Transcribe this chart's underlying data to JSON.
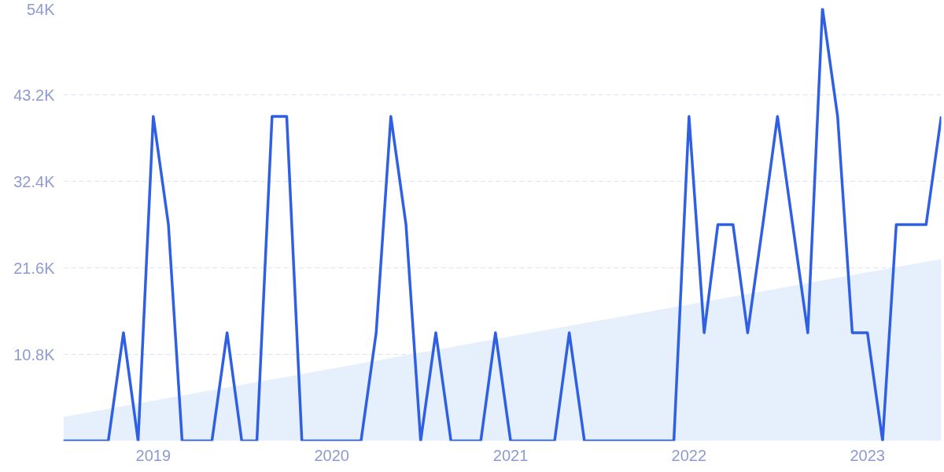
{
  "chart_data": {
    "type": "line",
    "x": [
      "2018-07",
      "2018-08",
      "2018-09",
      "2018-10",
      "2018-11",
      "2018-12",
      "2019-01",
      "2019-02",
      "2019-03",
      "2019-04",
      "2019-05",
      "2019-06",
      "2019-07",
      "2019-08",
      "2019-09",
      "2019-10",
      "2019-11",
      "2019-12",
      "2020-01",
      "2020-02",
      "2020-03",
      "2020-04",
      "2020-05",
      "2020-06",
      "2020-07",
      "2020-08",
      "2020-09",
      "2020-10",
      "2020-11",
      "2020-12",
      "2021-01",
      "2021-02",
      "2021-03",
      "2021-04",
      "2021-05",
      "2021-06",
      "2021-07",
      "2021-08",
      "2021-09",
      "2021-10",
      "2021-11",
      "2021-12",
      "2022-01",
      "2022-02",
      "2022-03",
      "2022-04",
      "2022-05",
      "2022-06",
      "2022-07",
      "2022-08",
      "2022-09",
      "2022-10",
      "2022-11",
      "2022-12",
      "2023-01",
      "2023-02",
      "2023-03",
      "2023-04",
      "2023-05",
      "2023-06"
    ],
    "series": [
      {
        "type": "area",
        "color": "#e3eefc",
        "x": [
          "2018-07",
          "2023-06"
        ],
        "values": [
          3000,
          22700
        ]
      },
      {
        "color": "#2f5fe3",
        "values": [
          0,
          0,
          0,
          0,
          13500,
          0,
          40500,
          27000,
          0,
          0,
          0,
          13500,
          0,
          0,
          40500,
          40500,
          0,
          0,
          0,
          0,
          0,
          13500,
          40500,
          27000,
          0,
          13500,
          0,
          0,
          0,
          13500,
          0,
          0,
          0,
          0,
          13500,
          0,
          0,
          0,
          0,
          0,
          0,
          0,
          40500,
          13500,
          27000,
          27000,
          13500,
          27000,
          40500,
          27000,
          13500,
          54000,
          40500,
          13500,
          13500,
          0,
          27000,
          27000,
          27000,
          40500
        ]
      }
    ],
    "xlim": [
      "2018-07",
      "2023-06"
    ],
    "xticks": [
      {
        "value": "2019",
        "label": "2019"
      },
      {
        "value": "2020",
        "label": "2020"
      },
      {
        "value": "2021",
        "label": "2021"
      },
      {
        "value": "2022",
        "label": "2022"
      },
      {
        "value": "2023",
        "label": "2023"
      }
    ],
    "ylim": [
      0,
      54000
    ],
    "yticks": [
      {
        "value": 10800,
        "label": "10.8K"
      },
      {
        "value": 21600,
        "label": "21.6K"
      },
      {
        "value": 32400,
        "label": "32.4K"
      },
      {
        "value": 43200,
        "label": "43.2K"
      },
      {
        "value": 54000,
        "label": "54K"
      }
    ],
    "grid": "y"
  }
}
